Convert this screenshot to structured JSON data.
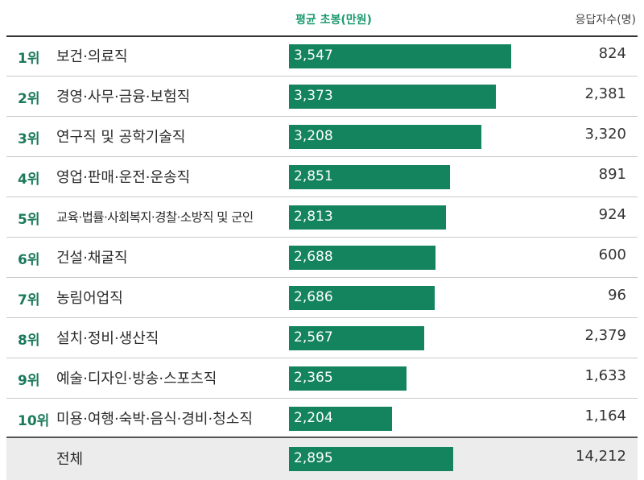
{
  "colors": {
    "bar": "#14845e",
    "rank": "#1c7a5c",
    "header_score": "#1c9a6e"
  },
  "header": {
    "score_label": "평균 초봉(만원)",
    "count_label": "응답자수(명)"
  },
  "chart_data": {
    "type": "bar",
    "orientation": "horizontal",
    "title": "",
    "ylabel": "평균 초봉(만원)",
    "xlim": [
      0,
      4000
    ],
    "ranks": [
      "1위",
      "2위",
      "3위",
      "4위",
      "5위",
      "6위",
      "7위",
      "8위",
      "9위",
      "10위",
      ""
    ],
    "categories": [
      "보건·의료직",
      "경영·사무·금융·보험직",
      "연구직 및 공학기술직",
      "영업·판매·운전·운송직",
      "교육·법률·사회복지·경찰·소방직 및 군인",
      "건설·채굴직",
      "농림어업직",
      "설치·정비·생산직",
      "예술·디자인·방송·스포츠직",
      "미용·여행·숙박·음식·경비·청소직",
      "전체"
    ],
    "values": [
      3547,
      3373,
      3208,
      2851,
      2813,
      2688,
      2686,
      2567,
      2365,
      2204,
      2895
    ],
    "value_labels": [
      "3,547",
      "3,373",
      "3,208",
      "2,851",
      "2,813",
      "2,688",
      "2,686",
      "2,567",
      "2,365",
      "2,204",
      "2,895"
    ],
    "respondents": [
      "824",
      "2,381",
      "3,320",
      "891",
      "924",
      "600",
      "96",
      "2,379",
      "1,633",
      "1,164",
      "14,212"
    ]
  }
}
